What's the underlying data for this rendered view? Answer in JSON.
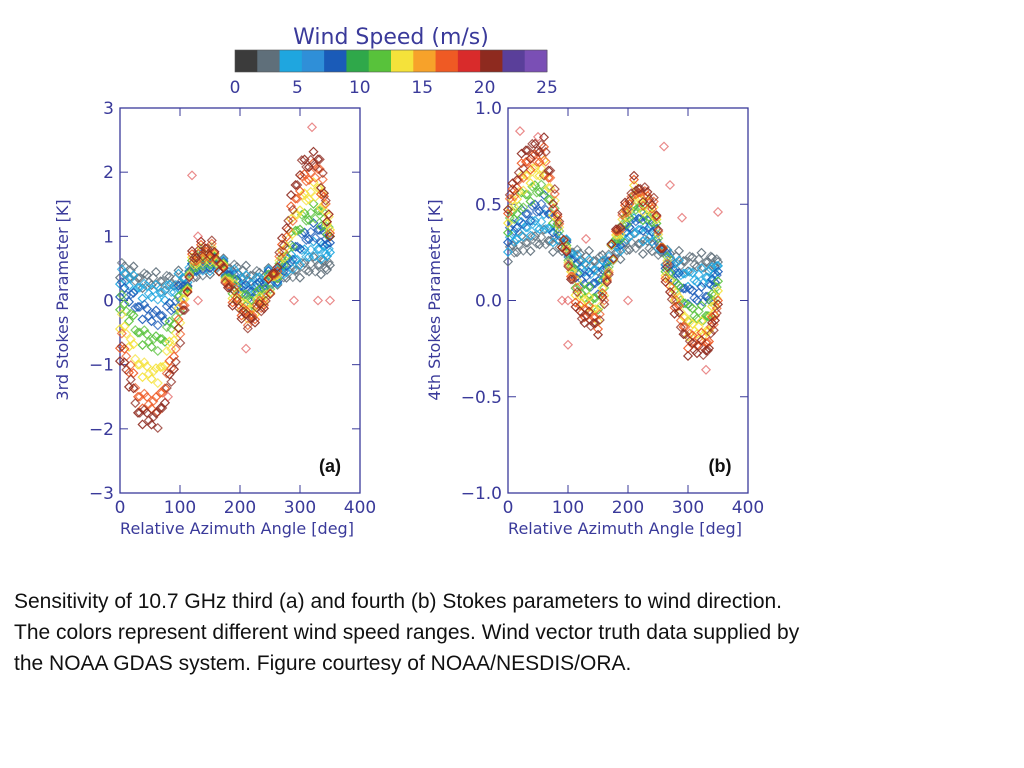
{
  "colorbar": {
    "title": "Wind Speed (m/s)",
    "ticks": [
      "0",
      "5",
      "10",
      "15",
      "20",
      "25"
    ],
    "range": [
      0,
      25
    ],
    "colors": [
      "#3b3b3b",
      "#5f6f7a",
      "#1fa6df",
      "#2f8fd8",
      "#1a5bb8",
      "#2fa84a",
      "#58c23b",
      "#f5e23a",
      "#f7a22a",
      "#ef5a24",
      "#d92b2b",
      "#8e2a1f",
      "#5a3f9a",
      "#7a4fb5"
    ]
  },
  "chart_data": [
    {
      "type": "scatter",
      "panel_label": "(a)",
      "xlabel": "Relative Azimuth Angle [deg]",
      "ylabel": "3rd Stokes Parameter [K]",
      "xlim": [
        0,
        400
      ],
      "ylim": [
        -3,
        3
      ],
      "xticks": [
        0,
        100,
        200,
        300,
        400
      ],
      "xtick_labels": [
        "0",
        "100",
        "200",
        "300",
        "400"
      ],
      "yticks": [
        -3,
        -2,
        -1,
        0,
        1,
        2,
        3
      ],
      "ytick_labels": [
        "−3",
        "−2",
        "−1",
        "0",
        "1",
        "2",
        "3"
      ],
      "marker": "diamond",
      "color_by": "wind_speed",
      "x": [
        0,
        30,
        60,
        90,
        120,
        150,
        180,
        210,
        240,
        270,
        300,
        330,
        350
      ],
      "series": [
        {
          "wind_speed": 2,
          "values": [
            0.5,
            0.35,
            0.3,
            0.3,
            0.4,
            0.55,
            0.5,
            0.4,
            0.35,
            0.4,
            0.5,
            0.55,
            0.55
          ]
        },
        {
          "wind_speed": 5,
          "values": [
            0.4,
            0.2,
            0.1,
            0.2,
            0.5,
            0.6,
            0.45,
            0.25,
            0.3,
            0.45,
            0.7,
            0.8,
            0.75
          ]
        },
        {
          "wind_speed": 8,
          "values": [
            0.2,
            -0.1,
            -0.3,
            -0.05,
            0.5,
            0.65,
            0.4,
            0.1,
            0.25,
            0.5,
            0.95,
            1.1,
            0.9
          ]
        },
        {
          "wind_speed": 11,
          "values": [
            0.0,
            -0.5,
            -0.7,
            -0.3,
            0.55,
            0.7,
            0.35,
            -0.05,
            0.15,
            0.6,
            1.25,
            1.4,
            1.0
          ]
        },
        {
          "wind_speed": 14,
          "values": [
            -0.3,
            -1.0,
            -1.2,
            -0.55,
            0.6,
            0.75,
            0.3,
            -0.2,
            0.05,
            0.7,
            1.55,
            1.75,
            1.1
          ]
        },
        {
          "wind_speed": 17,
          "values": [
            -0.6,
            -1.5,
            -1.65,
            -0.8,
            0.65,
            0.8,
            0.25,
            -0.3,
            0.0,
            0.8,
            1.85,
            2.05,
            1.05
          ]
        },
        {
          "wind_speed": 20,
          "values": [
            -0.8,
            -1.75,
            -1.9,
            -1.0,
            0.7,
            0.85,
            0.2,
            -0.35,
            -0.05,
            0.9,
            2.1,
            2.2,
            1.0
          ]
        }
      ],
      "outliers": [
        {
          "x": 120,
          "y": 1.95,
          "wind_speed": 18
        },
        {
          "x": 130,
          "y": 1.0,
          "wind_speed": 18
        },
        {
          "x": 130,
          "y": 0.0,
          "wind_speed": 18
        },
        {
          "x": 210,
          "y": -0.75,
          "wind_speed": 18
        },
        {
          "x": 290,
          "y": 0.0,
          "wind_speed": 18
        },
        {
          "x": 320,
          "y": 2.7,
          "wind_speed": 18
        },
        {
          "x": 330,
          "y": 0.0,
          "wind_speed": 18
        },
        {
          "x": 350,
          "y": 0.0,
          "wind_speed": 18
        },
        {
          "x": 80,
          "y": -1.5,
          "wind_speed": 18
        }
      ]
    },
    {
      "type": "scatter",
      "panel_label": "(b)",
      "xlabel": "Relative Azimuth Angle [deg]",
      "ylabel": "4th Stokes Parameter [K]",
      "xlim": [
        0,
        400
      ],
      "ylim": [
        -1.0,
        1.0
      ],
      "xticks": [
        0,
        100,
        200,
        300,
        400
      ],
      "xtick_labels": [
        "0",
        "100",
        "200",
        "300",
        "400"
      ],
      "yticks": [
        -1.0,
        -0.5,
        0.0,
        0.5,
        1.0
      ],
      "ytick_labels": [
        "−1.0",
        "−0.5",
        "0.0",
        "0.5",
        "1.0"
      ],
      "marker": "diamond",
      "color_by": "wind_speed",
      "x": [
        0,
        30,
        60,
        90,
        120,
        150,
        180,
        210,
        240,
        270,
        300,
        330,
        350
      ],
      "series": [
        {
          "wind_speed": 2,
          "values": [
            0.25,
            0.3,
            0.32,
            0.28,
            0.22,
            0.2,
            0.25,
            0.3,
            0.28,
            0.22,
            0.2,
            0.2,
            0.2
          ]
        },
        {
          "wind_speed": 5,
          "values": [
            0.3,
            0.38,
            0.4,
            0.3,
            0.18,
            0.15,
            0.28,
            0.38,
            0.33,
            0.2,
            0.12,
            0.12,
            0.18
          ]
        },
        {
          "wind_speed": 8,
          "values": [
            0.35,
            0.45,
            0.5,
            0.3,
            0.12,
            0.08,
            0.3,
            0.44,
            0.38,
            0.16,
            0.03,
            0.02,
            0.15
          ]
        },
        {
          "wind_speed": 11,
          "values": [
            0.4,
            0.55,
            0.6,
            0.3,
            0.05,
            0.0,
            0.32,
            0.5,
            0.43,
            0.12,
            -0.06,
            -0.08,
            0.1
          ]
        },
        {
          "wind_speed": 14,
          "values": [
            0.45,
            0.65,
            0.68,
            0.3,
            0.0,
            -0.06,
            0.34,
            0.55,
            0.47,
            0.08,
            -0.14,
            -0.16,
            0.05
          ]
        },
        {
          "wind_speed": 17,
          "values": [
            0.5,
            0.72,
            0.75,
            0.3,
            -0.05,
            -0.1,
            0.36,
            0.58,
            0.5,
            0.05,
            -0.2,
            -0.22,
            0.0
          ]
        },
        {
          "wind_speed": 20,
          "values": [
            0.52,
            0.78,
            0.8,
            0.3,
            -0.08,
            -0.13,
            0.37,
            0.6,
            0.52,
            0.02,
            -0.24,
            -0.26,
            -0.02
          ]
        }
      ],
      "outliers": [
        {
          "x": 20,
          "y": 0.88,
          "wind_speed": 18
        },
        {
          "x": 50,
          "y": 0.85,
          "wind_speed": 18
        },
        {
          "x": 60,
          "y": 0.65,
          "wind_speed": 18
        },
        {
          "x": 90,
          "y": 0.0,
          "wind_speed": 18
        },
        {
          "x": 100,
          "y": 0.0,
          "wind_speed": 18
        },
        {
          "x": 100,
          "y": -0.23,
          "wind_speed": 18
        },
        {
          "x": 130,
          "y": 0.32,
          "wind_speed": 18
        },
        {
          "x": 200,
          "y": 0.0,
          "wind_speed": 18
        },
        {
          "x": 260,
          "y": 0.8,
          "wind_speed": 18
        },
        {
          "x": 270,
          "y": 0.6,
          "wind_speed": 18
        },
        {
          "x": 290,
          "y": 0.43,
          "wind_speed": 18
        },
        {
          "x": 330,
          "y": -0.36,
          "wind_speed": 18
        },
        {
          "x": 350,
          "y": 0.46,
          "wind_speed": 18
        }
      ]
    }
  ],
  "caption": {
    "lines": [
      "Sensitivity of 10.7 GHz third (a) and fourth (b) Stokes parameters to wind direction.",
      "The colors represent different wind speed ranges. Wind vector truth data supplied by",
      "the NOAA GDAS system. Figure courtesy of NOAA/NESDIS/ORA."
    ]
  }
}
